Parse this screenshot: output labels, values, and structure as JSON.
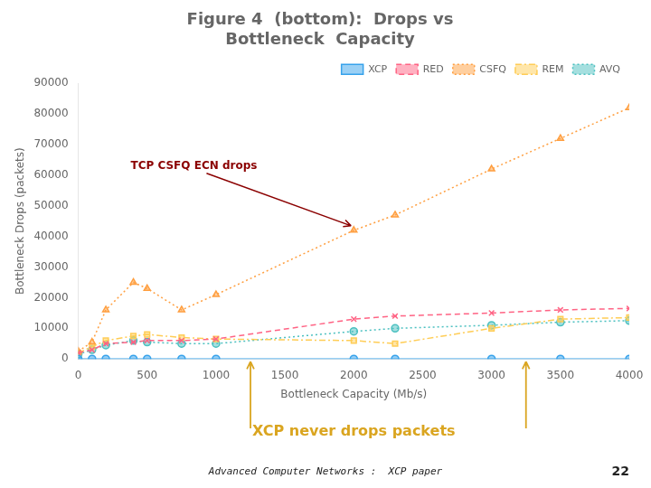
{
  "chart_data": {
    "type": "line",
    "title": [
      "Figure 4  (bottom):  Drops vs",
      "Bottleneck  Capacity"
    ],
    "xlabel": "Bottleneck Capacity (Mb/s)",
    "ylabel": "Bottleneck Drops (packets)",
    "x": [
      0,
      100,
      200,
      400,
      500,
      750,
      1000,
      2000,
      2300,
      3000,
      3500,
      4000
    ],
    "series": [
      {
        "name": "XCP",
        "values": [
          0,
          0,
          0,
          0,
          0,
          0,
          0,
          0,
          0,
          0,
          0,
          0
        ],
        "marker": "circle",
        "line_style": "solid"
      },
      {
        "name": "RED",
        "values": [
          2000,
          3000,
          5000,
          5500,
          6000,
          6000,
          6500,
          13000,
          14000,
          15000,
          16000,
          16500
        ],
        "marker": "x",
        "line_style": "dashed"
      },
      {
        "name": "CSFQ",
        "values": [
          2500,
          5500,
          16000,
          25000,
          23000,
          16000,
          21000,
          42000,
          47000,
          62000,
          72000,
          82000
        ],
        "marker": "triangle",
        "line_style": "dotted"
      },
      {
        "name": "REM",
        "values": [
          2000,
          4000,
          6000,
          7500,
          8000,
          7000,
          6500,
          6000,
          5000,
          10000,
          13000,
          13500
        ],
        "marker": "square",
        "line_style": "dashdot"
      },
      {
        "name": "AVQ",
        "values": [
          1500,
          3000,
          4500,
          6000,
          5500,
          5000,
          5000,
          9000,
          10000,
          11000,
          12000,
          12500
        ],
        "marker": "circle",
        "line_style": "dotted"
      }
    ],
    "xlim": [
      0,
      4000
    ],
    "ylim": [
      0,
      90000
    ],
    "xticks": [
      0,
      500,
      1000,
      1500,
      2000,
      2500,
      3000,
      3500,
      4000
    ],
    "yticks": [
      0,
      10000,
      20000,
      30000,
      40000,
      50000,
      60000,
      70000,
      80000,
      90000
    ],
    "grid": false,
    "legend": "upper right",
    "annotations": [
      {
        "text": "TCP CSFQ ECN drops",
        "x": 2000,
        "y": 42000
      },
      {
        "text": "XCP never drops packets"
      },
      {
        "text": "Advanced Computer Networks :  XCP paper"
      },
      {
        "text": "22"
      }
    ]
  }
}
